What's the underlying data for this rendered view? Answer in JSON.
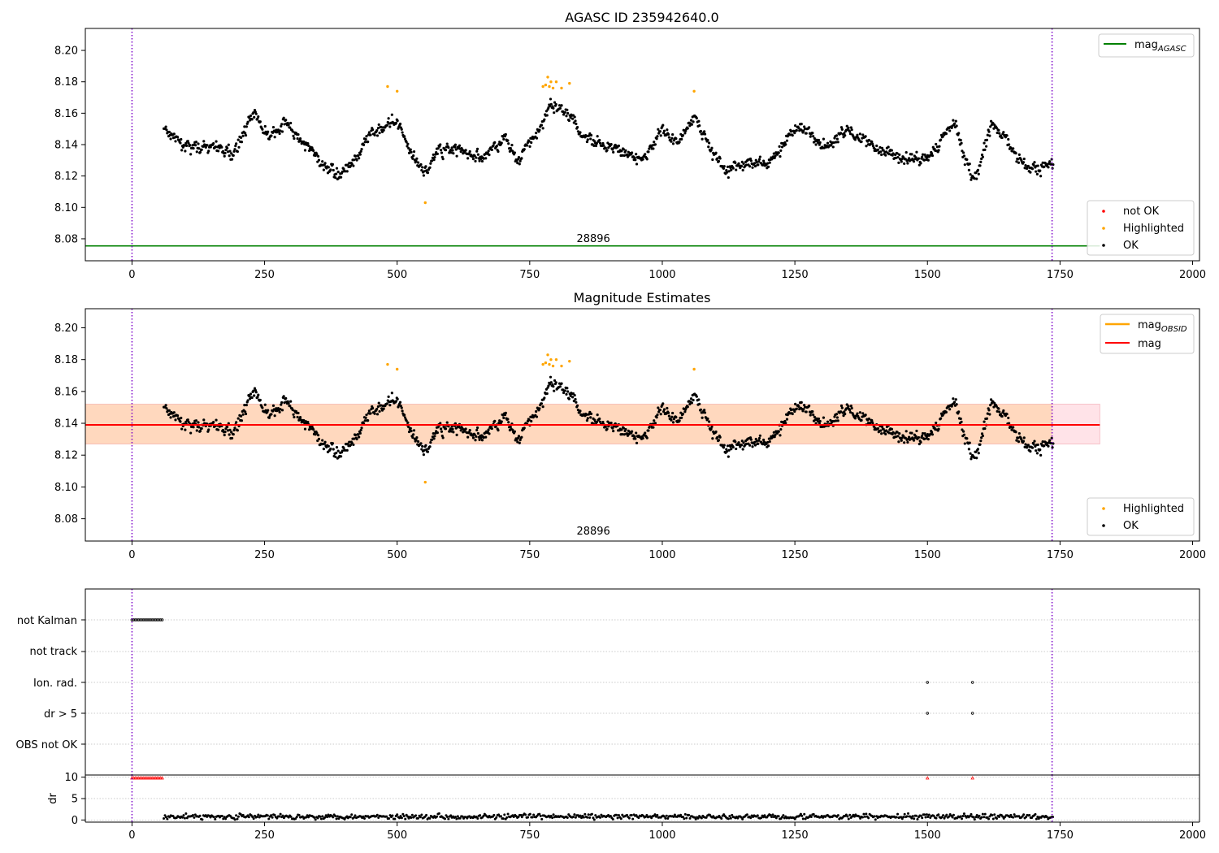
{
  "chart_data": [
    {
      "type": "scatter",
      "title": "AGASC ID 235942640.0",
      "xlim": [
        -88,
        2013
      ],
      "ylim": [
        8.066,
        8.214
      ],
      "xticks": [
        0,
        250,
        500,
        750,
        1000,
        1250,
        1500,
        1750,
        2000
      ],
      "yticks": [
        8.08,
        8.1,
        8.12,
        8.14,
        8.16,
        8.18,
        8.2
      ],
      "ytick_labels": [
        "8.08",
        "8.10",
        "8.12",
        "8.14",
        "8.16",
        "8.18",
        "8.20"
      ],
      "vlines": [
        0,
        1735
      ],
      "hline": {
        "name": "mag_AGASC",
        "y": 8.0755,
        "color": "#008000",
        "x_range": [
          -88,
          1825
        ]
      },
      "annotation": {
        "text": "28896",
        "x": 870,
        "y": 8.08
      },
      "legend_upper": [
        {
          "label": "mag",
          "sub": "AGASC",
          "color": "#008000"
        }
      ],
      "legend_lower": [
        {
          "label": "not OK",
          "color": "#ff0000"
        },
        {
          "label": "Highlighted",
          "color": "#ffa500"
        },
        {
          "label": "OK",
          "color": "#000000"
        }
      ],
      "series": [
        {
          "name": "OK",
          "color": "#000000",
          "x_range": [
            60,
            1737
          ],
          "trend": [
            [
              60,
              8.15
            ],
            [
              100,
              8.137
            ],
            [
              150,
              8.14
            ],
            [
              190,
              8.135
            ],
            [
              230,
              8.16
            ],
            [
              260,
              8.143
            ],
            [
              290,
              8.156
            ],
            [
              320,
              8.14
            ],
            [
              360,
              8.126
            ],
            [
              400,
              8.123
            ],
            [
              440,
              8.14
            ],
            [
              470,
              8.152
            ],
            [
              500,
              8.155
            ],
            [
              520,
              8.14
            ],
            [
              550,
              8.122
            ],
            [
              580,
              8.138
            ],
            [
              620,
              8.135
            ],
            [
              660,
              8.131
            ],
            [
              700,
              8.142
            ],
            [
              730,
              8.132
            ],
            [
              760,
              8.145
            ],
            [
              790,
              8.165
            ],
            [
              820,
              8.16
            ],
            [
              850,
              8.147
            ],
            [
              880,
              8.142
            ],
            [
              910,
              8.136
            ],
            [
              940,
              8.132
            ],
            [
              970,
              8.133
            ],
            [
              1000,
              8.15
            ],
            [
              1030,
              8.14
            ],
            [
              1060,
              8.158
            ],
            [
              1090,
              8.14
            ],
            [
              1120,
              8.122
            ],
            [
              1160,
              8.13
            ],
            [
              1200,
              8.128
            ],
            [
              1230,
              8.142
            ],
            [
              1260,
              8.152
            ],
            [
              1300,
              8.137
            ],
            [
              1350,
              8.15
            ],
            [
              1400,
              8.14
            ],
            [
              1450,
              8.131
            ],
            [
              1500,
              8.13
            ],
            [
              1530,
              8.145
            ],
            [
              1550,
              8.155
            ],
            [
              1570,
              8.132
            ],
            [
              1590,
              8.118
            ],
            [
              1620,
              8.152
            ],
            [
              1660,
              8.135
            ],
            [
              1700,
              8.125
            ],
            [
              1737,
              8.126
            ]
          ],
          "noise": 0.006
        },
        {
          "name": "Highlighted",
          "color": "#ffa500",
          "points": [
            [
              482,
              8.177
            ],
            [
              500,
              8.174
            ],
            [
              553,
              8.103
            ],
            [
              775,
              8.177
            ],
            [
              780,
              8.178
            ],
            [
              784,
              8.183
            ],
            [
              787,
              8.177
            ],
            [
              790,
              8.18
            ],
            [
              794,
              8.176
            ],
            [
              800,
              8.18
            ],
            [
              810,
              8.176
            ],
            [
              825,
              8.179
            ],
            [
              1060,
              8.174
            ]
          ]
        }
      ]
    },
    {
      "type": "scatter",
      "title": "Magnitude Estimates",
      "xlim": [
        -88,
        2013
      ],
      "ylim": [
        8.066,
        8.212
      ],
      "xticks": [
        0,
        250,
        500,
        750,
        1000,
        1250,
        1500,
        1750,
        2000
      ],
      "yticks": [
        8.08,
        8.1,
        8.12,
        8.14,
        8.16,
        8.18,
        8.2
      ],
      "ytick_labels": [
        "8.08",
        "8.10",
        "8.12",
        "8.14",
        "8.16",
        "8.18",
        "8.20"
      ],
      "vlines": [
        0,
        1735
      ],
      "hline": {
        "name": "mag",
        "y": 8.139,
        "color": "#ff0000",
        "x_range": [
          -88,
          1825
        ]
      },
      "band": {
        "y": [
          8.127,
          8.152
        ],
        "x_range": [
          -88,
          1825
        ],
        "color": "#ffc0cb"
      },
      "band_obs": {
        "y": [
          8.127,
          8.152
        ],
        "x_range": [
          -88,
          1735
        ],
        "color": "#ffa500"
      },
      "annotation": {
        "text": "28896",
        "x": 870,
        "y": 8.072
      },
      "legend_upper": [
        {
          "label": "mag",
          "sub": "OBSID",
          "color": "#ffa500"
        },
        {
          "label": "mag",
          "sub": "",
          "color": "#ff0000"
        }
      ],
      "legend_lower": [
        {
          "label": "Highlighted",
          "color": "#ffa500"
        },
        {
          "label": "OK",
          "color": "#000000"
        }
      ]
    },
    {
      "type": "scatter",
      "title": "",
      "xlim": [
        -88,
        2013
      ],
      "categories": [
        "not Kalman",
        "not track",
        "Ion. rad.",
        "dr > 5",
        "OBS not OK"
      ],
      "flags": [
        {
          "category": "not Kalman",
          "x_range": [
            0,
            58
          ],
          "step": 3
        },
        {
          "category": "Ion. rad.",
          "points": [
            1500,
            1585
          ]
        },
        {
          "category": "dr > 5",
          "points": [
            1500,
            1585
          ]
        }
      ],
      "vlines": [
        0,
        1735
      ]
    },
    {
      "type": "scatter",
      "title": "",
      "ylabel": "dr",
      "xlim": [
        -88,
        2013
      ],
      "ylim": [
        -0.5,
        10.5
      ],
      "xticks": [
        0,
        250,
        500,
        750,
        1000,
        1250,
        1500,
        1750,
        2000
      ],
      "yticks": [
        0,
        5,
        10
      ],
      "ytick_labels": [
        "0",
        "5",
        "10"
      ],
      "vlines": [
        0,
        1735
      ],
      "series": [
        {
          "name": "dr",
          "color": "#000000",
          "x_range": [
            60,
            1737
          ],
          "mean": 0.8,
          "noise": 0.6
        },
        {
          "name": "dr clipped",
          "color": "#ff0000",
          "x_range": [
            0,
            58
          ],
          "step": 3,
          "y": 9.8,
          "extra": [
            1500,
            1585
          ]
        }
      ]
    }
  ]
}
